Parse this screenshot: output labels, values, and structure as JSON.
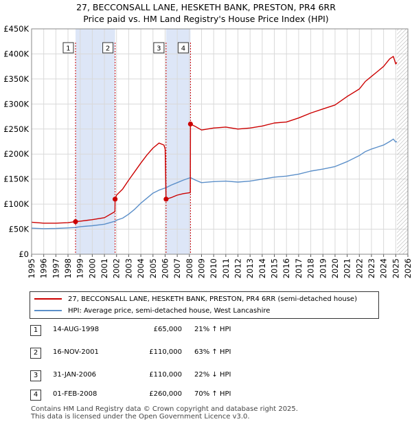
{
  "title": {
    "line1": "27, BECCONSALL LANE, HESKETH BANK, PRESTON, PR4 6RR",
    "line2": "Price paid vs. HM Land Registry's House Price Index (HPI)"
  },
  "colors": {
    "property": "#cc0000",
    "hpi": "#5b8fc9",
    "shade": "#dde6f7",
    "grid": "#d9d9d9"
  },
  "chart_data": {
    "type": "line",
    "title": "Price paid vs. HM Land Registry's House Price Index (HPI)",
    "xlim": [
      1995,
      2026
    ],
    "ylim": [
      0,
      450000
    ],
    "x_ticks": [
      "1995",
      "1996",
      "1997",
      "1998",
      "1999",
      "2000",
      "2001",
      "2002",
      "2003",
      "2004",
      "2005",
      "2006",
      "2007",
      "2008",
      "2009",
      "2010",
      "2011",
      "2012",
      "2013",
      "2014",
      "2015",
      "2016",
      "2017",
      "2018",
      "2019",
      "2020",
      "2021",
      "2022",
      "2023",
      "2024",
      "2025",
      "2026"
    ],
    "y_ticks": [
      {
        "value": 0,
        "label": "£0"
      },
      {
        "value": 50000,
        "label": "£50K"
      },
      {
        "value": 100000,
        "label": "£100K"
      },
      {
        "value": 150000,
        "label": "£150K"
      },
      {
        "value": 200000,
        "label": "£200K"
      },
      {
        "value": 250000,
        "label": "£250K"
      },
      {
        "value": 300000,
        "label": "£300K"
      },
      {
        "value": 350000,
        "label": "£350K"
      },
      {
        "value": 400000,
        "label": "£400K"
      },
      {
        "value": 450000,
        "label": "£450K"
      }
    ],
    "shaded_ranges": [
      [
        1998.62,
        2001.88
      ],
      [
        2006.08,
        2008.09
      ]
    ],
    "future_hatch_from": 2025.1,
    "series": [
      {
        "name": "27, BECCONSALL LANE, HESKETH BANK, PRESTON, PR4 6RR (semi-detached house)",
        "points": [
          [
            1995,
            64000
          ],
          [
            1996,
            62000
          ],
          [
            1997,
            62000
          ],
          [
            1998,
            63000
          ],
          [
            1998.62,
            65000
          ],
          [
            1999,
            66000
          ],
          [
            2000,
            69000
          ],
          [
            2001,
            73000
          ],
          [
            2001.87,
            85000
          ],
          [
            2001.88,
            110000
          ],
          [
            2002,
            118000
          ],
          [
            2002.5,
            130000
          ],
          [
            2003,
            148000
          ],
          [
            2003.5,
            165000
          ],
          [
            2004,
            182000
          ],
          [
            2004.5,
            198000
          ],
          [
            2005,
            212000
          ],
          [
            2005.5,
            222000
          ],
          [
            2005.9,
            218000
          ],
          [
            2006.0,
            210000
          ],
          [
            2006.08,
            110000
          ],
          [
            2006.5,
            113000
          ],
          [
            2007,
            118000
          ],
          [
            2007.5,
            121000
          ],
          [
            2008.08,
            123000
          ],
          [
            2008.09,
            260000
          ],
          [
            2008.5,
            255000
          ],
          [
            2009,
            248000
          ],
          [
            2010,
            252000
          ],
          [
            2011,
            254000
          ],
          [
            2012,
            250000
          ],
          [
            2013,
            252000
          ],
          [
            2014,
            256000
          ],
          [
            2015,
            262000
          ],
          [
            2016,
            264000
          ],
          [
            2017,
            272000
          ],
          [
            2018,
            282000
          ],
          [
            2019,
            290000
          ],
          [
            2020,
            298000
          ],
          [
            2021,
            315000
          ],
          [
            2022,
            330000
          ],
          [
            2022.5,
            345000
          ],
          [
            2023,
            355000
          ],
          [
            2023.5,
            365000
          ],
          [
            2024,
            375000
          ],
          [
            2024.5,
            390000
          ],
          [
            2024.8,
            395000
          ],
          [
            2025,
            380000
          ],
          [
            2025.1,
            383000
          ]
        ]
      },
      {
        "name": "HPI: Average price, semi-detached house, West Lancashire",
        "points": [
          [
            1995,
            52000
          ],
          [
            1996,
            51000
          ],
          [
            1997,
            51500
          ],
          [
            1998,
            52500
          ],
          [
            1998.62,
            53500
          ],
          [
            1999,
            55000
          ],
          [
            2000,
            57000
          ],
          [
            2001,
            60000
          ],
          [
            2001.88,
            66000
          ],
          [
            2002,
            68000
          ],
          [
            2002.5,
            72000
          ],
          [
            2003,
            80000
          ],
          [
            2003.5,
            90000
          ],
          [
            2004,
            102000
          ],
          [
            2004.5,
            112000
          ],
          [
            2005,
            122000
          ],
          [
            2005.5,
            128000
          ],
          [
            2006.08,
            133000
          ],
          [
            2006.5,
            138000
          ],
          [
            2007,
            143000
          ],
          [
            2007.5,
            148000
          ],
          [
            2008.09,
            153000
          ],
          [
            2008.5,
            148000
          ],
          [
            2009,
            143000
          ],
          [
            2010,
            145000
          ],
          [
            2011,
            146000
          ],
          [
            2012,
            144000
          ],
          [
            2013,
            146000
          ],
          [
            2014,
            150000
          ],
          [
            2015,
            154000
          ],
          [
            2016,
            156000
          ],
          [
            2017,
            160000
          ],
          [
            2018,
            166000
          ],
          [
            2019,
            170000
          ],
          [
            2020,
            175000
          ],
          [
            2021,
            185000
          ],
          [
            2022,
            197000
          ],
          [
            2022.5,
            205000
          ],
          [
            2023,
            210000
          ],
          [
            2023.5,
            214000
          ],
          [
            2024,
            218000
          ],
          [
            2024.5,
            225000
          ],
          [
            2024.8,
            230000
          ],
          [
            2025,
            224000
          ],
          [
            2025.1,
            225000
          ]
        ]
      }
    ],
    "sales": [
      {
        "num": "1",
        "x": 1998.62,
        "value": 65000
      },
      {
        "num": "2",
        "x": 2001.88,
        "value": 110000
      },
      {
        "num": "3",
        "x": 2006.08,
        "value": 110000
      },
      {
        "num": "4",
        "x": 2008.09,
        "value": 260000
      }
    ]
  },
  "legend": {
    "property": "27, BECCONSALL LANE, HESKETH BANK, PRESTON, PR4 6RR (semi-detached house)",
    "hpi": "HPI: Average price, semi-detached house, West Lancashire"
  },
  "sales_table": [
    {
      "num": "1",
      "date": "14-AUG-1998",
      "price": "£65,000",
      "hpi": "21% ↑ HPI"
    },
    {
      "num": "2",
      "date": "16-NOV-2001",
      "price": "£110,000",
      "hpi": "63% ↑ HPI"
    },
    {
      "num": "3",
      "date": "31-JAN-2006",
      "price": "£110,000",
      "hpi": "22% ↓ HPI"
    },
    {
      "num": "4",
      "date": "01-FEB-2008",
      "price": "£260,000",
      "hpi": "70% ↑ HPI"
    }
  ],
  "footer": {
    "line1": "Contains HM Land Registry data © Crown copyright and database right 2025.",
    "line2": "This data is licensed under the Open Government Licence v3.0."
  }
}
